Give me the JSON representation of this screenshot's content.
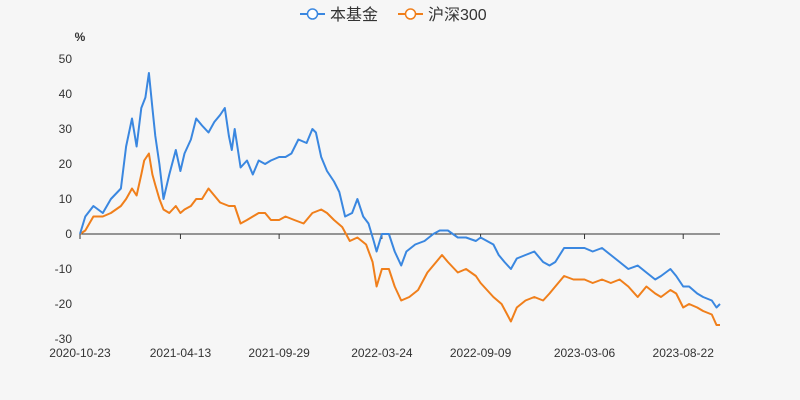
{
  "chart_data": {
    "type": "line",
    "title": "",
    "xlabel": "",
    "ylabel": "%",
    "ylim": [
      -30,
      50
    ],
    "yticks": [
      50,
      40,
      30,
      20,
      10,
      0,
      -10,
      -20,
      -30
    ],
    "xlim": [
      "2020-10-23",
      "2023-10-24"
    ],
    "xticks": [
      "2020-10-23",
      "2021-04-13",
      "2021-09-29",
      "2022-03-24",
      "2022-09-09",
      "2023-03-06",
      "2023-08-22"
    ],
    "grid": false,
    "legend": "top-center",
    "series": [
      {
        "name": "本基金",
        "color": "#3a87e0",
        "points": [
          [
            "2020-10-23",
            0
          ],
          [
            "2020-11-01",
            5
          ],
          [
            "2020-11-15",
            8
          ],
          [
            "2020-12-01",
            6
          ],
          [
            "2020-12-15",
            10
          ],
          [
            "2021-01-01",
            13
          ],
          [
            "2021-01-10",
            25
          ],
          [
            "2021-01-20",
            33
          ],
          [
            "2021-01-28",
            25
          ],
          [
            "2021-02-05",
            36
          ],
          [
            "2021-02-12",
            39
          ],
          [
            "2021-02-18",
            46
          ],
          [
            "2021-02-24",
            36
          ],
          [
            "2021-03-01",
            28
          ],
          [
            "2021-03-08",
            20
          ],
          [
            "2021-03-15",
            10
          ],
          [
            "2021-03-25",
            17
          ],
          [
            "2021-04-05",
            24
          ],
          [
            "2021-04-13",
            18
          ],
          [
            "2021-04-20",
            23
          ],
          [
            "2021-05-01",
            27
          ],
          [
            "2021-05-10",
            33
          ],
          [
            "2021-05-20",
            31
          ],
          [
            "2021-05-31",
            29
          ],
          [
            "2021-06-10",
            32
          ],
          [
            "2021-06-20",
            34
          ],
          [
            "2021-06-28",
            36
          ],
          [
            "2021-07-05",
            28
          ],
          [
            "2021-07-10",
            24
          ],
          [
            "2021-07-15",
            30
          ],
          [
            "2021-07-25",
            19
          ],
          [
            "2021-08-05",
            21
          ],
          [
            "2021-08-15",
            17
          ],
          [
            "2021-08-25",
            21
          ],
          [
            "2021-09-05",
            20
          ],
          [
            "2021-09-15",
            21
          ],
          [
            "2021-09-29",
            22
          ],
          [
            "2021-10-10",
            22
          ],
          [
            "2021-10-20",
            23
          ],
          [
            "2021-11-01",
            27
          ],
          [
            "2021-11-15",
            26
          ],
          [
            "2021-11-25",
            30
          ],
          [
            "2021-12-01",
            29
          ],
          [
            "2021-12-10",
            22
          ],
          [
            "2021-12-20",
            18
          ],
          [
            "2022-01-01",
            15
          ],
          [
            "2022-01-10",
            12
          ],
          [
            "2022-01-20",
            5
          ],
          [
            "2022-02-01",
            6
          ],
          [
            "2022-02-10",
            10
          ],
          [
            "2022-02-20",
            5
          ],
          [
            "2022-03-01",
            3
          ],
          [
            "2022-03-10",
            -2
          ],
          [
            "2022-03-15",
            -5
          ],
          [
            "2022-03-24",
            0
          ],
          [
            "2022-04-05",
            0
          ],
          [
            "2022-04-15",
            -5
          ],
          [
            "2022-04-26",
            -9
          ],
          [
            "2022-05-05",
            -5
          ],
          [
            "2022-05-20",
            -3
          ],
          [
            "2022-06-05",
            -2
          ],
          [
            "2022-06-20",
            0
          ],
          [
            "2022-07-01",
            1
          ],
          [
            "2022-07-15",
            1
          ],
          [
            "2022-08-01",
            -1
          ],
          [
            "2022-08-15",
            -1
          ],
          [
            "2022-09-01",
            -2
          ],
          [
            "2022-09-09",
            -1
          ],
          [
            "2022-09-20",
            -2
          ],
          [
            "2022-10-01",
            -3
          ],
          [
            "2022-10-10",
            -6
          ],
          [
            "2022-10-20",
            -8
          ],
          [
            "2022-10-31",
            -10
          ],
          [
            "2022-11-10",
            -7
          ],
          [
            "2022-11-25",
            -6
          ],
          [
            "2022-12-10",
            -5
          ],
          [
            "2022-12-25",
            -8
          ],
          [
            "2023-01-05",
            -9
          ],
          [
            "2023-01-15",
            -8
          ],
          [
            "2023-01-30",
            -4
          ],
          [
            "2023-02-15",
            -4
          ],
          [
            "2023-03-06",
            -4
          ],
          [
            "2023-03-20",
            -5
          ],
          [
            "2023-04-05",
            -4
          ],
          [
            "2023-04-20",
            -6
          ],
          [
            "2023-05-05",
            -8
          ],
          [
            "2023-05-20",
            -10
          ],
          [
            "2023-06-05",
            -9
          ],
          [
            "2023-06-20",
            -11
          ],
          [
            "2023-07-05",
            -13
          ],
          [
            "2023-07-15",
            -12
          ],
          [
            "2023-07-31",
            -10
          ],
          [
            "2023-08-10",
            -12
          ],
          [
            "2023-08-22",
            -15
          ],
          [
            "2023-09-01",
            -15
          ],
          [
            "2023-09-15",
            -17
          ],
          [
            "2023-09-25",
            -18
          ],
          [
            "2023-10-10",
            -19
          ],
          [
            "2023-10-18",
            -21
          ],
          [
            "2023-10-24",
            -20
          ]
        ]
      },
      {
        "name": "沪深300",
        "color": "#f07f1b",
        "points": [
          [
            "2020-10-23",
            0
          ],
          [
            "2020-11-01",
            1
          ],
          [
            "2020-11-15",
            5
          ],
          [
            "2020-12-01",
            5
          ],
          [
            "2020-12-15",
            6
          ],
          [
            "2021-01-01",
            8
          ],
          [
            "2021-01-10",
            10
          ],
          [
            "2021-01-20",
            13
          ],
          [
            "2021-01-28",
            11
          ],
          [
            "2021-02-05",
            17
          ],
          [
            "2021-02-10",
            21
          ],
          [
            "2021-02-18",
            23
          ],
          [
            "2021-02-24",
            17
          ],
          [
            "2021-03-01",
            14
          ],
          [
            "2021-03-08",
            10
          ],
          [
            "2021-03-15",
            7
          ],
          [
            "2021-03-25",
            6
          ],
          [
            "2021-04-05",
            8
          ],
          [
            "2021-04-13",
            6
          ],
          [
            "2021-04-20",
            7
          ],
          [
            "2021-05-01",
            8
          ],
          [
            "2021-05-10",
            10
          ],
          [
            "2021-05-20",
            10
          ],
          [
            "2021-05-31",
            13
          ],
          [
            "2021-06-10",
            11
          ],
          [
            "2021-06-20",
            9
          ],
          [
            "2021-07-05",
            8
          ],
          [
            "2021-07-15",
            8
          ],
          [
            "2021-07-25",
            3
          ],
          [
            "2021-08-05",
            4
          ],
          [
            "2021-08-15",
            5
          ],
          [
            "2021-08-25",
            6
          ],
          [
            "2021-09-05",
            6
          ],
          [
            "2021-09-15",
            4
          ],
          [
            "2021-09-29",
            4
          ],
          [
            "2021-10-10",
            5
          ],
          [
            "2021-10-25",
            4
          ],
          [
            "2021-11-10",
            3
          ],
          [
            "2021-11-25",
            6
          ],
          [
            "2021-12-10",
            7
          ],
          [
            "2021-12-20",
            6
          ],
          [
            "2022-01-01",
            4
          ],
          [
            "2022-01-15",
            2
          ],
          [
            "2022-01-28",
            -2
          ],
          [
            "2022-02-10",
            -1
          ],
          [
            "2022-02-25",
            -3
          ],
          [
            "2022-03-08",
            -8
          ],
          [
            "2022-03-15",
            -15
          ],
          [
            "2022-03-24",
            -10
          ],
          [
            "2022-04-05",
            -10
          ],
          [
            "2022-04-15",
            -15
          ],
          [
            "2022-04-26",
            -19
          ],
          [
            "2022-05-10",
            -18
          ],
          [
            "2022-05-25",
            -16
          ],
          [
            "2022-06-10",
            -11
          ],
          [
            "2022-06-25",
            -8
          ],
          [
            "2022-07-05",
            -6
          ],
          [
            "2022-07-15",
            -8
          ],
          [
            "2022-08-01",
            -11
          ],
          [
            "2022-08-15",
            -10
          ],
          [
            "2022-09-01",
            -12
          ],
          [
            "2022-09-09",
            -14
          ],
          [
            "2022-09-20",
            -16
          ],
          [
            "2022-10-01",
            -18
          ],
          [
            "2022-10-15",
            -20
          ],
          [
            "2022-10-31",
            -25
          ],
          [
            "2022-11-10",
            -21
          ],
          [
            "2022-11-25",
            -19
          ],
          [
            "2022-12-10",
            -18
          ],
          [
            "2022-12-25",
            -19
          ],
          [
            "2023-01-05",
            -17
          ],
          [
            "2023-01-15",
            -15
          ],
          [
            "2023-01-30",
            -12
          ],
          [
            "2023-02-15",
            -13
          ],
          [
            "2023-03-06",
            -13
          ],
          [
            "2023-03-20",
            -14
          ],
          [
            "2023-04-05",
            -13
          ],
          [
            "2023-04-20",
            -14
          ],
          [
            "2023-05-05",
            -13
          ],
          [
            "2023-05-20",
            -15
          ],
          [
            "2023-06-05",
            -18
          ],
          [
            "2023-06-20",
            -15
          ],
          [
            "2023-07-05",
            -17
          ],
          [
            "2023-07-15",
            -18
          ],
          [
            "2023-07-31",
            -16
          ],
          [
            "2023-08-10",
            -17
          ],
          [
            "2023-08-22",
            -21
          ],
          [
            "2023-09-01",
            -20
          ],
          [
            "2023-09-15",
            -21
          ],
          [
            "2023-09-25",
            -22
          ],
          [
            "2023-10-10",
            -23
          ],
          [
            "2023-10-18",
            -26
          ],
          [
            "2023-10-24",
            -26
          ]
        ]
      }
    ]
  }
}
